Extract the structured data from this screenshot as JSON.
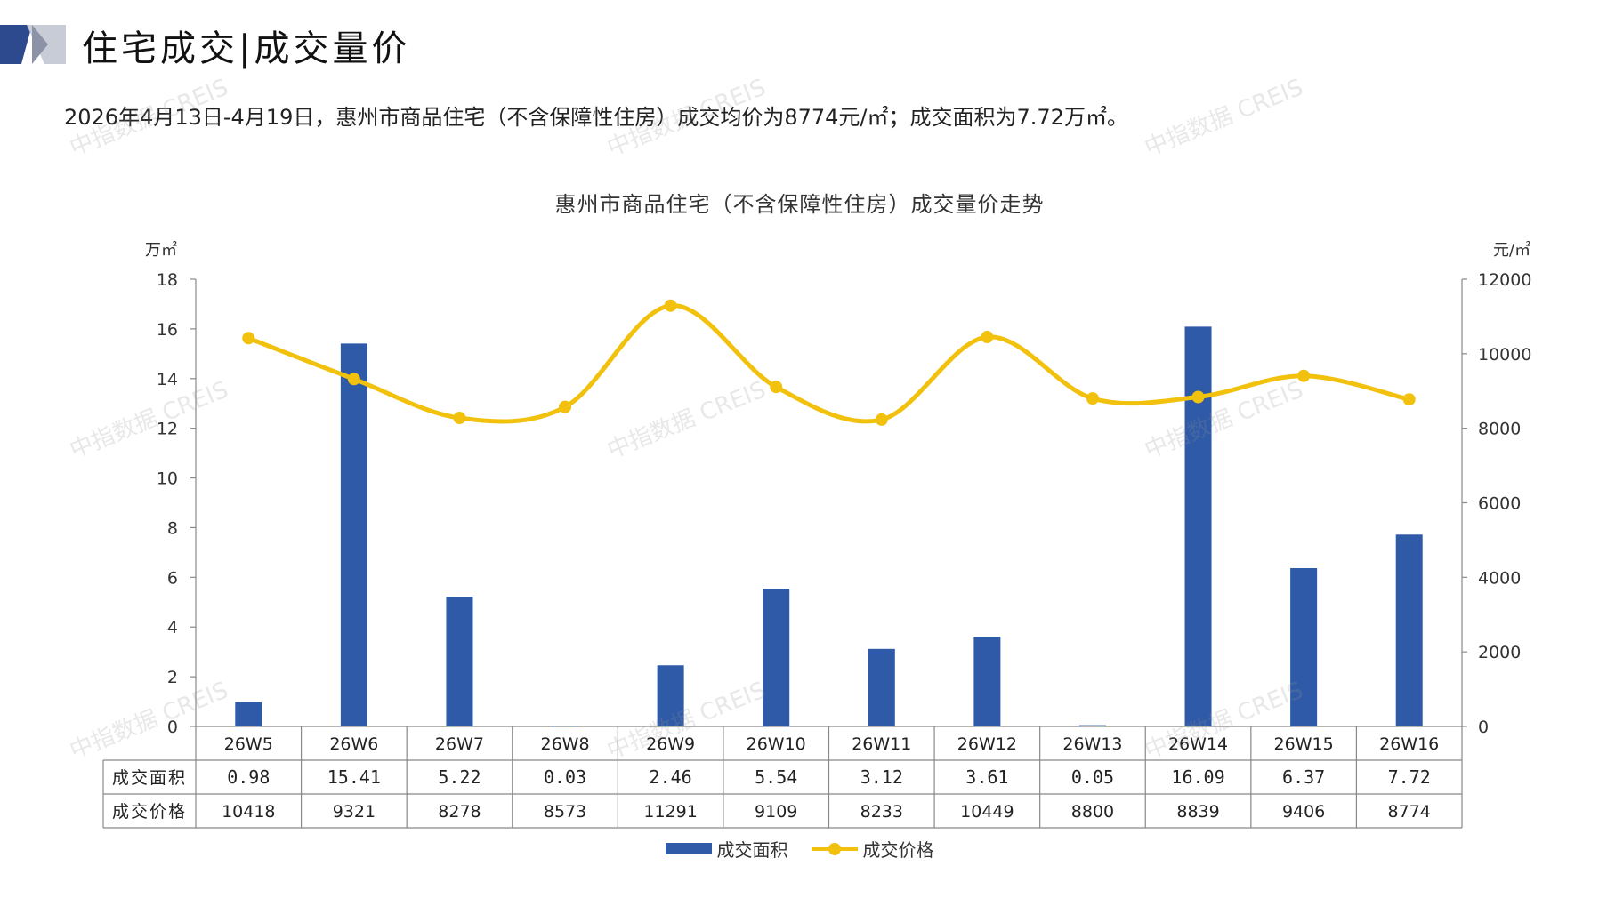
{
  "page": {
    "title": "住宅成交|成交量价",
    "summary": "2026年4月13日-4月19日，惠州市商品住宅（不含保障性住房）成交均价为8774元/㎡；成交面积为7.72万㎡。"
  },
  "colors": {
    "bar": "#2E5AA7",
    "line": "#F2C10E",
    "logo_dark": "#2E4A8F",
    "logo_light": "#C8CCD6"
  },
  "chart_data": {
    "type": "bar",
    "title": "惠州市商品住宅（不含保障性住房）成交量价走势",
    "y_left_unit": "万㎡",
    "y_right_unit": "元/㎡",
    "y_left_ticks": [
      0,
      2,
      4,
      6,
      8,
      10,
      12,
      14,
      16,
      18
    ],
    "y_right_ticks": [
      0,
      2000,
      4000,
      6000,
      8000,
      10000,
      12000
    ],
    "ylim_left": [
      0,
      18
    ],
    "ylim_right": [
      0,
      12000
    ],
    "categories": [
      "26W5",
      "26W6",
      "26W7",
      "26W8",
      "26W9",
      "26W10",
      "26W11",
      "26W12",
      "26W13",
      "26W14",
      "26W15",
      "26W16"
    ],
    "series": [
      {
        "name": "成交面积",
        "type": "bar",
        "axis": "left",
        "values": [
          0.98,
          15.41,
          5.22,
          0.03,
          2.46,
          5.54,
          3.12,
          3.61,
          0.05,
          16.09,
          6.37,
          7.72
        ],
        "labels": [
          "0.98",
          "15.41",
          "5.22",
          "0.03",
          "2.46",
          "5.54",
          "3.12",
          "3.61",
          "0.05",
          "16.09",
          "6.37",
          "7.72"
        ]
      },
      {
        "name": "成交价格",
        "type": "line",
        "axis": "right",
        "values": [
          10418,
          9321,
          8278,
          8573,
          11291,
          9109,
          8233,
          10449,
          8800,
          8839,
          9406,
          8774
        ],
        "labels": [
          "10418",
          "9321",
          "8278",
          "8573",
          "11291",
          "9109",
          "8233",
          "10449",
          "8800",
          "8839",
          "9406",
          "8774"
        ]
      }
    ],
    "table_row_labels": [
      "成交面积",
      "成交价格"
    ],
    "legend_position": "bottom",
    "grid": false
  },
  "watermark": "中指数据 CREIS"
}
